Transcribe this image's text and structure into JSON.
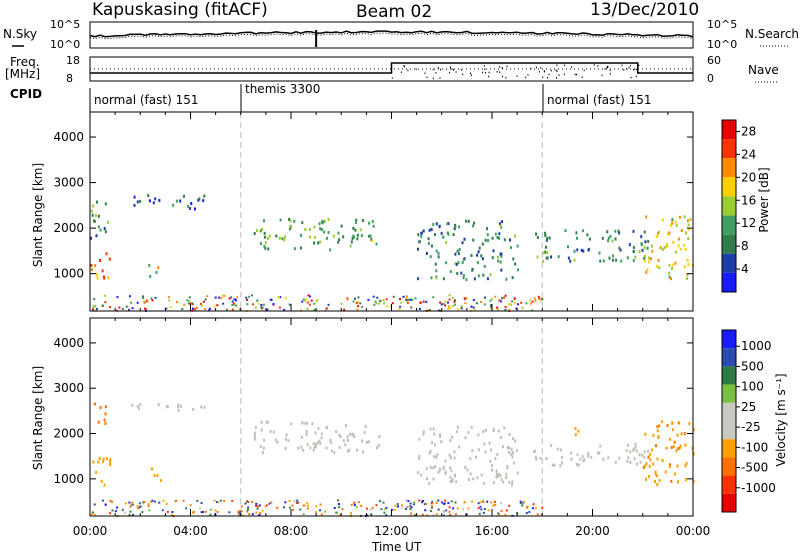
{
  "header": {
    "station": "Kapuskasing (fitACF)",
    "beam": "Beam 02",
    "date": "13/Dec/2010"
  },
  "strip": {
    "nsky_label": "N.Sky",
    "nsearch_label": "N.Search",
    "noise_left_ticks": [
      "10^5",
      "10^0"
    ],
    "noise_right_ticks": [
      "10^5",
      "10^0"
    ],
    "freq_label_1": "Freq.",
    "freq_label_2": "[MHz]",
    "freq_ticks": [
      "18",
      "8"
    ],
    "nave_label": "Nave",
    "nave_ticks": [
      "60",
      "0"
    ],
    "cpid_label": "CPID",
    "cpid_segments": [
      "normal (fast) 151",
      "themis 3300",
      "normal (fast) 151"
    ]
  },
  "colors": {
    "power_scale": [
      "#1a1aff",
      "#1f3fa8",
      "#2e7d4a",
      "#3fa060",
      "#9acd32",
      "#ffd000",
      "#ff8c00",
      "#ff3300",
      "#e80000"
    ],
    "velocity_scale": [
      "#1a1aff",
      "#2a4ab0",
      "#2f7a45",
      "#7abf40",
      "#c8c8c0",
      "#c8c8c0",
      "#ffa000",
      "#ff7000",
      "#ff3000",
      "#e80000"
    ],
    "ground_scatter": "#c0c0b8"
  },
  "chart_data": [
    {
      "type": "heatmap",
      "name": "Power",
      "xlabel": "Time UT",
      "ylabel": "Slant Range [km]",
      "x_ticks": [
        "00:00",
        "04:00",
        "08:00",
        "12:00",
        "16:00",
        "20:00",
        "00:00"
      ],
      "y_ticks": [
        "1000",
        "2000",
        "3000",
        "4000"
      ],
      "ylim": [
        180,
        4550
      ],
      "xlim_hours": [
        0,
        24
      ],
      "colorbar_label": "Power [dB]",
      "colorbar_ticks": [
        "4",
        "8",
        "12",
        "16",
        "20",
        "24",
        "28"
      ],
      "colorbar_range": [
        0,
        30
      ],
      "echo_regions": [
        {
          "t0": 0.0,
          "t1": 0.8,
          "r0": 1800,
          "r1": 2700,
          "level": 10
        },
        {
          "t0": 0.0,
          "t1": 0.8,
          "r0": 800,
          "r1": 1500,
          "level": 22
        },
        {
          "t0": 2.3,
          "t1": 2.8,
          "r0": 900,
          "r1": 1300,
          "level": 16
        },
        {
          "t0": 1.5,
          "t1": 4.6,
          "r0": 2450,
          "r1": 2750,
          "level": 6
        },
        {
          "t0": 6.5,
          "t1": 11.5,
          "r0": 1550,
          "r1": 2250,
          "level": 12
        },
        {
          "t0": 13.0,
          "t1": 17.0,
          "r0": 900,
          "r1": 2200,
          "level": 9
        },
        {
          "t0": 17.5,
          "t1": 22.2,
          "r0": 1300,
          "r1": 2000,
          "level": 10
        },
        {
          "t0": 22.0,
          "t1": 24.0,
          "r0": 900,
          "r1": 2300,
          "level": 18
        }
      ],
      "near_range_band": {
        "t0": 0,
        "t1": 18.0,
        "r0": 200,
        "r1": 550
      }
    },
    {
      "type": "heatmap",
      "name": "Velocity",
      "xlabel": "Time UT",
      "ylabel": "Slant Range [km]",
      "x_ticks": [
        "00:00",
        "04:00",
        "08:00",
        "12:00",
        "16:00",
        "20:00",
        "00:00"
      ],
      "y_ticks": [
        "1000",
        "2000",
        "3000",
        "4000"
      ],
      "ylim": [
        180,
        4550
      ],
      "xlim_hours": [
        0,
        24
      ],
      "colorbar_label": "Velocity [m s⁻¹]",
      "colorbar_ticks": [
        "1000",
        "500",
        "100",
        "25",
        "-25",
        "-100",
        "-500",
        "-1000"
      ],
      "echo_regions": [
        {
          "t0": 0.0,
          "t1": 0.8,
          "r0": 800,
          "r1": 1500,
          "velocity": -300
        },
        {
          "t0": 0.0,
          "t1": 0.6,
          "r0": 2200,
          "r1": 2700,
          "velocity": -800
        },
        {
          "t0": 2.3,
          "t1": 2.8,
          "r0": 900,
          "r1": 1300,
          "velocity": -300
        },
        {
          "t0": 1.5,
          "t1": 4.6,
          "r0": 2500,
          "r1": 2700,
          "velocity": 0
        },
        {
          "t0": 6.5,
          "t1": 11.5,
          "r0": 1600,
          "r1": 2300,
          "velocity": 0
        },
        {
          "t0": 13.0,
          "t1": 17.0,
          "r0": 900,
          "r1": 2200,
          "velocity": 0
        },
        {
          "t0": 17.5,
          "t1": 22.2,
          "r0": 1300,
          "r1": 1800,
          "velocity": 0
        },
        {
          "t0": 19.0,
          "t1": 19.6,
          "r0": 1950,
          "r1": 2150,
          "velocity": -300
        },
        {
          "t0": 22.0,
          "t1": 24.0,
          "r0": 900,
          "r1": 2300,
          "velocity": -400
        }
      ],
      "near_range_band": {
        "t0": 0,
        "t1": 18.0,
        "r0": 200,
        "r1": 550
      }
    }
  ]
}
